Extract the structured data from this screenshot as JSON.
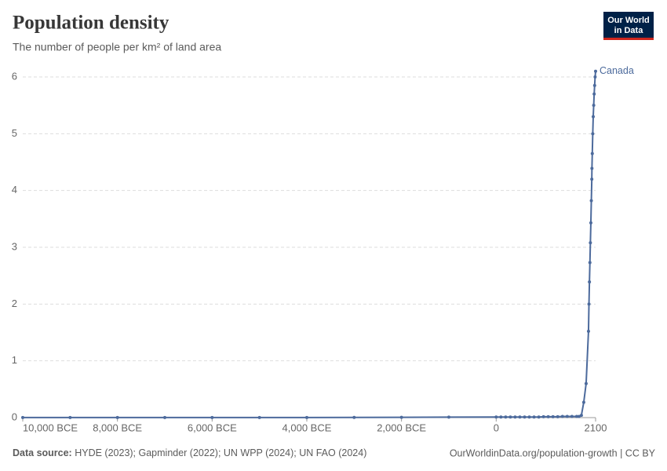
{
  "chart_data": {
    "type": "line",
    "title": "Population density",
    "subtitle": "The number of people per km² of land area",
    "logo": [
      "Our World",
      "in Data"
    ],
    "source_label": "Data source:",
    "source": "HYDE (2023); Gapminder (2022); UN WPP (2024); UN FAO (2024)",
    "footer_right": "OurWorldinData.org/population-growth | CC BY",
    "x": [
      -10000,
      -9000,
      -8000,
      -7000,
      -6000,
      -5000,
      -4000,
      -3000,
      -2000,
      -1000,
      0,
      100,
      200,
      300,
      400,
      500,
      600,
      700,
      800,
      900,
      1000,
      1100,
      1200,
      1300,
      1400,
      1500,
      1600,
      1700,
      1750,
      1800,
      1850,
      1900,
      1950,
      1960,
      1970,
      1980,
      1990,
      2000,
      2010,
      2020,
      2023,
      2030,
      2040,
      2050,
      2060,
      2070,
      2080,
      2090,
      2100
    ],
    "series": [
      {
        "name": "Canada",
        "color": "#4c6a9c",
        "values": [
          0.002,
          0.002,
          0.002,
          0.002,
          0.002,
          0.002,
          0.002,
          0.003,
          0.005,
          0.008,
          0.01,
          0.01,
          0.01,
          0.01,
          0.01,
          0.01,
          0.01,
          0.01,
          0.01,
          0.01,
          0.015,
          0.015,
          0.015,
          0.015,
          0.02,
          0.02,
          0.02,
          0.02,
          0.02,
          0.04,
          0.27,
          0.6,
          1.52,
          2.0,
          2.39,
          2.73,
          3.08,
          3.43,
          3.82,
          4.2,
          4.39,
          4.65,
          5.0,
          5.3,
          5.5,
          5.7,
          5.85,
          6.0,
          6.1
        ]
      }
    ],
    "xlim": [
      -10000,
      2100
    ],
    "xticks": [
      {
        "value": -10000,
        "label": "10,000 BCE"
      },
      {
        "value": -8000,
        "label": "8,000 BCE"
      },
      {
        "value": -6000,
        "label": "6,000 BCE"
      },
      {
        "value": -4000,
        "label": "4,000 BCE"
      },
      {
        "value": -2000,
        "label": "2,000 BCE"
      },
      0,
      2100
    ],
    "ylim": [
      0,
      6
    ],
    "yticks": [
      0,
      1,
      2,
      3,
      4,
      5,
      6
    ],
    "grid": true
  }
}
